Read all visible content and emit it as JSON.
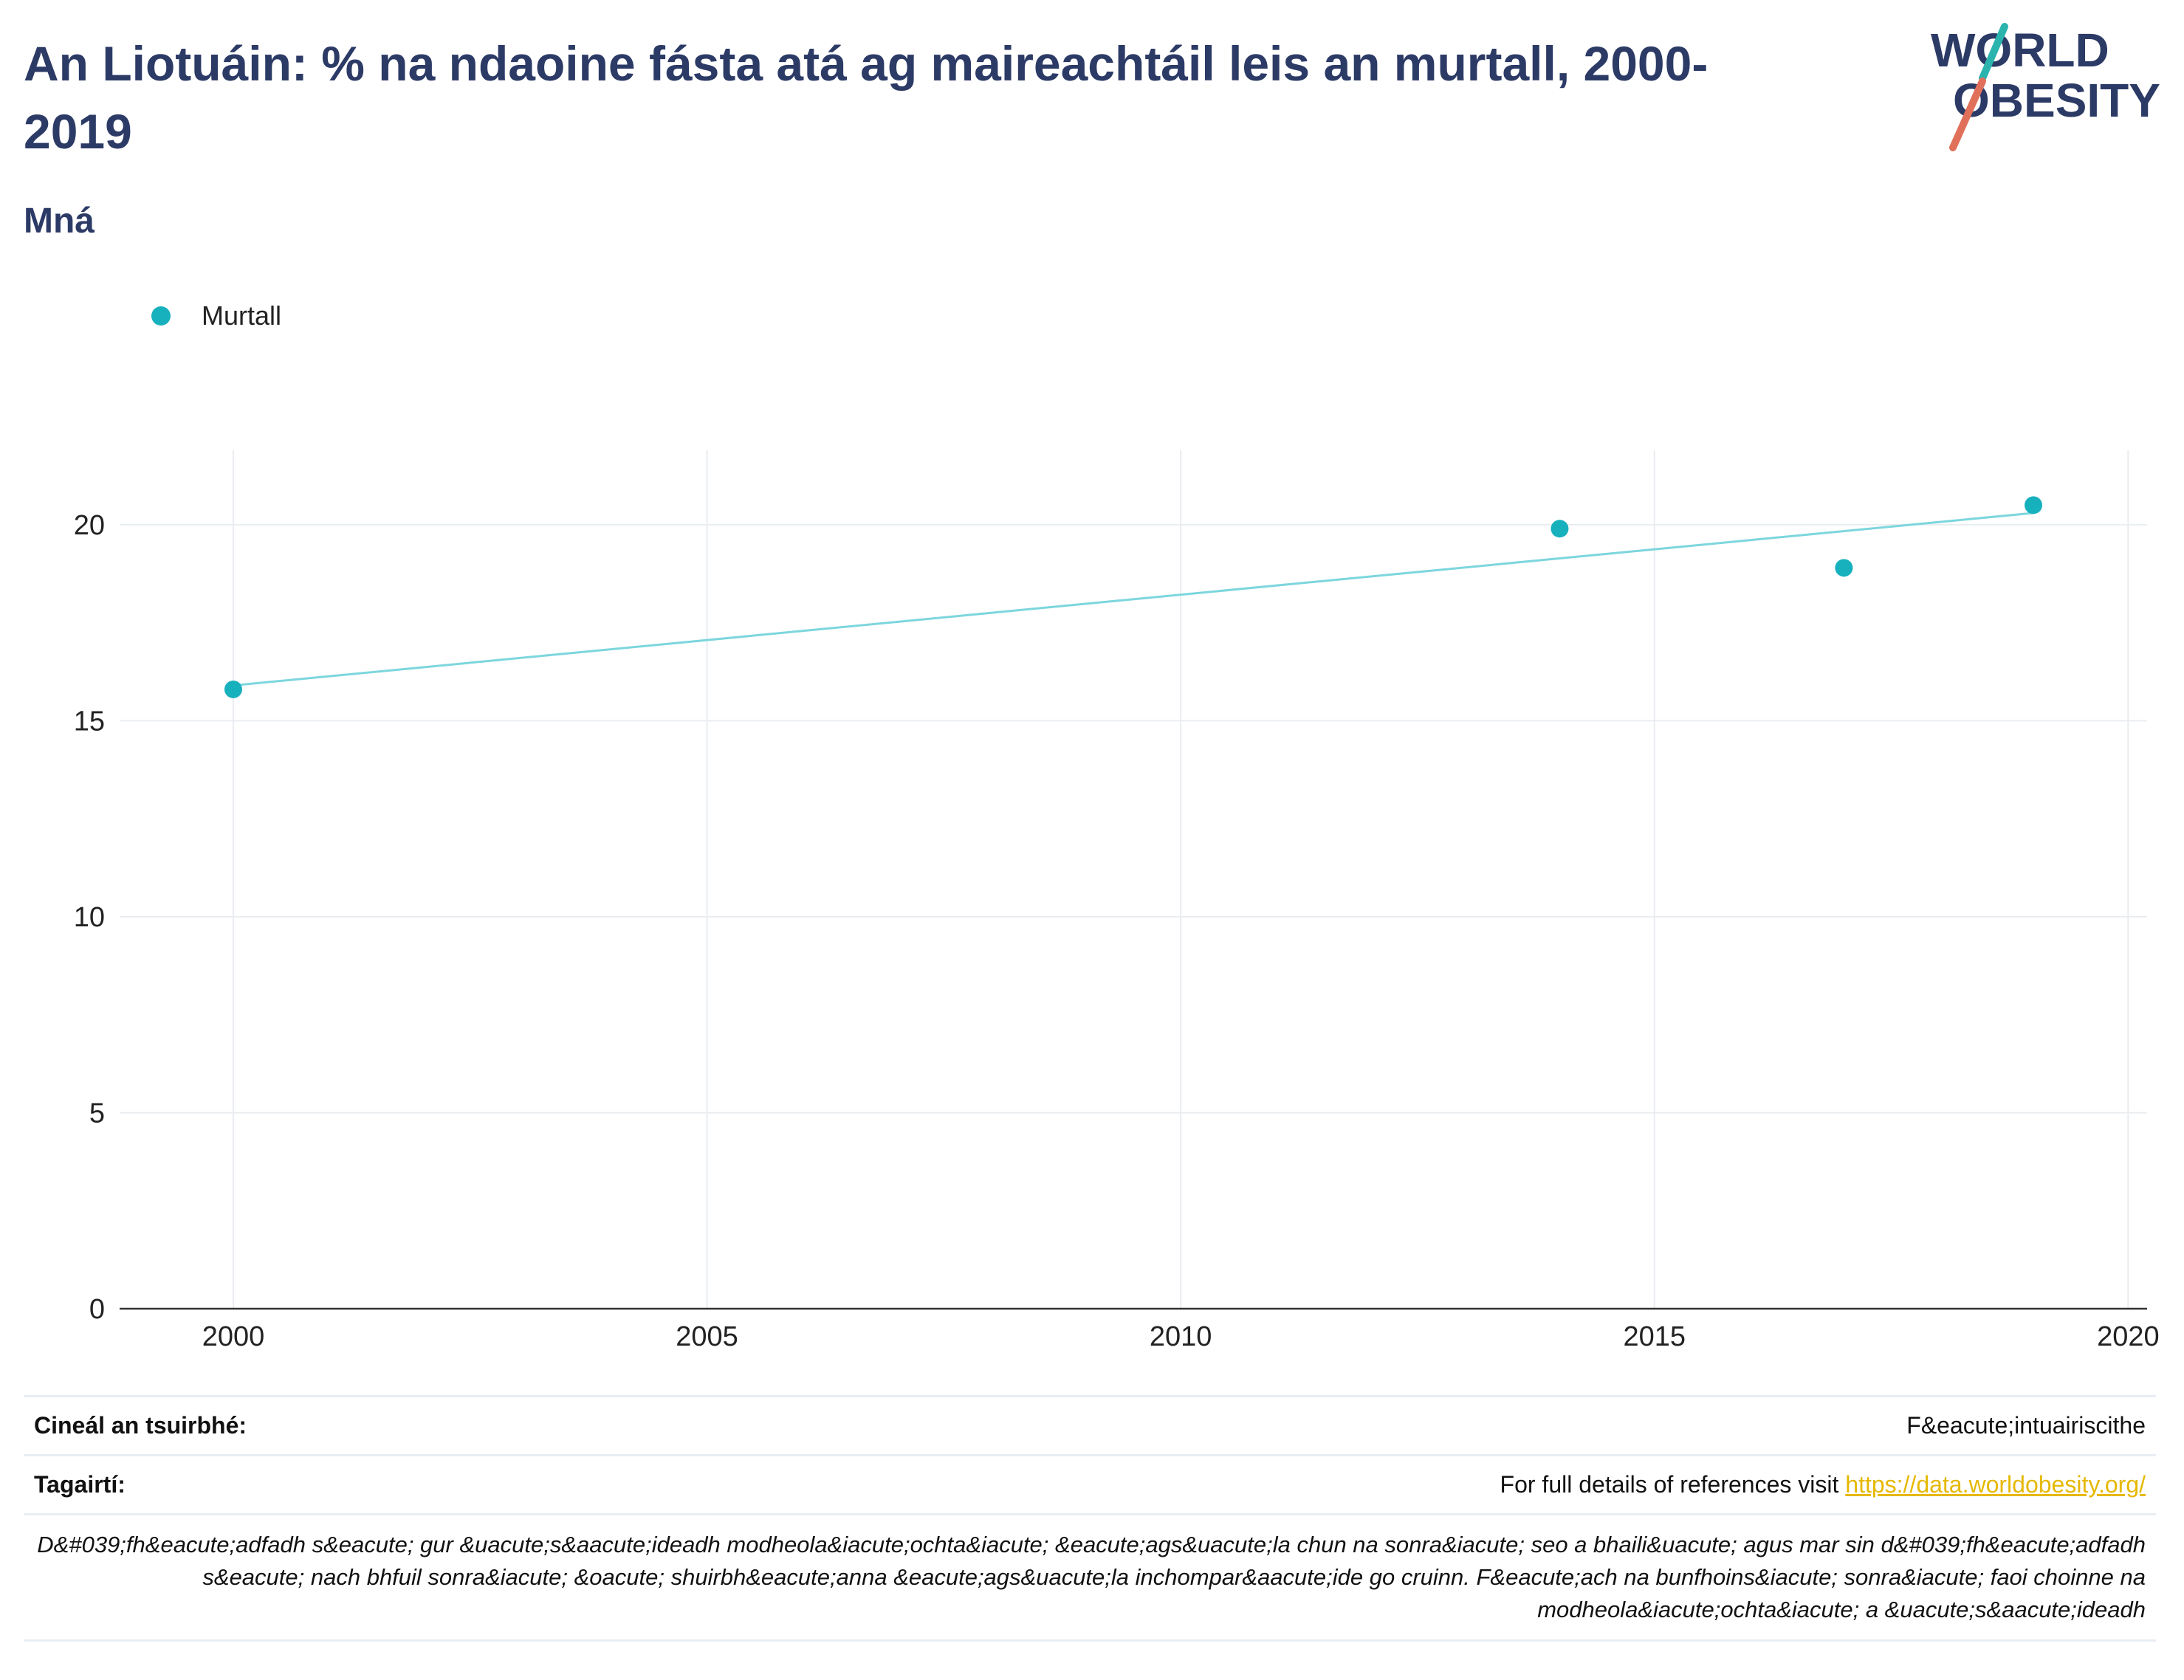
{
  "header": {
    "title": "An Liotuáin: % na ndaoine fásta atá ag maireachtáil leis an murtall, 2000-2019",
    "subtitle": "Mná"
  },
  "logo": {
    "line1": "WORLD",
    "line2": "OBESITY"
  },
  "legend": {
    "label": "Murtall",
    "color": "#17b0bd"
  },
  "chart_data": {
    "type": "scatter",
    "series": [
      {
        "name": "Murtall",
        "color": "#17b0bd",
        "x": [
          2000,
          2014,
          2017,
          2019
        ],
        "y": [
          15.8,
          19.9,
          18.9,
          20.5
        ]
      }
    ],
    "trendline": {
      "color": "#7dd6dd",
      "x": [
        2000,
        2019
      ],
      "y": [
        15.9,
        20.3
      ]
    },
    "xlim": [
      1998.8,
      2020.2
    ],
    "ylim": [
      0,
      21.9
    ],
    "xticks": [
      2000,
      2005,
      2010,
      2015,
      2020
    ],
    "yticks": [
      0,
      5,
      10,
      15,
      20
    ],
    "grid": true,
    "legend_position": "top-left",
    "gridline_color": "#e9edf1"
  },
  "info": {
    "survey_label": "Cineál an tsuirbhé:",
    "survey_value": "F&eacute;intuairiscithe",
    "references_label": "Tagairtí:",
    "references_text": "For full details of references visit",
    "references_link": "https://data.worldobesity.org/",
    "note": "D&#039;fh&eacute;adfadh s&eacute; gur &uacute;s&aacute;ideadh modheola&iacute;ochta&iacute; &eacute;ags&uacute;la chun na sonra&iacute; seo a bhaili&uacute; agus mar sin d&#039;fh&eacute;adfadh s&eacute; nach bhfuil sonra&iacute; &oacute; shuirbh&eacute;anna &eacute;ags&uacute;la inchompar&aacute;ide go cruinn. F&eacute;ach na bunfhoins&iacute; sonra&iacute; faoi choinne na modheola&iacute;ochta&iacute; a &uacute;s&aacute;ideadh"
  }
}
